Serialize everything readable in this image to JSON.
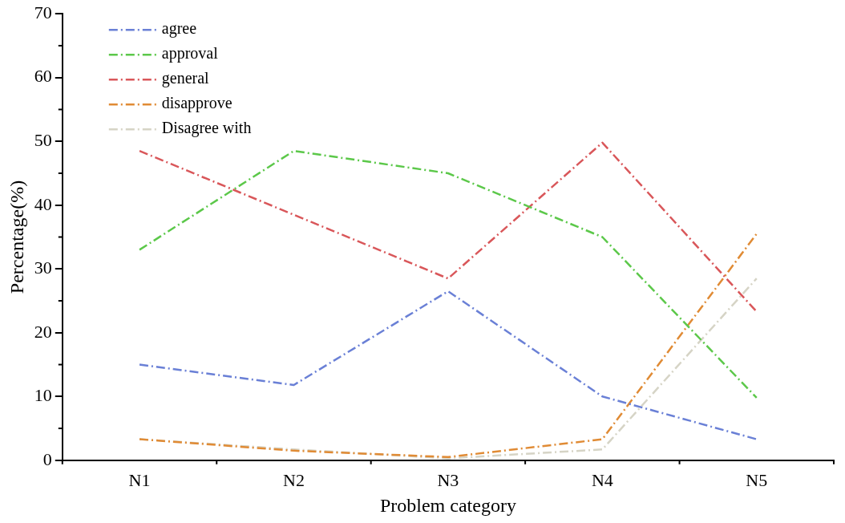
{
  "chart_data": {
    "type": "line",
    "xlabel": "Problem category",
    "ylabel": "Percentage(%)",
    "categories": [
      "N1",
      "N2",
      "N3",
      "N4",
      "N5"
    ],
    "series": [
      {
        "name": "agree",
        "color": "#6a80d6",
        "values": [
          15,
          11.8,
          26.5,
          10,
          3.3
        ]
      },
      {
        "name": "approval",
        "color": "#5cc84a",
        "values": [
          33,
          48.5,
          45,
          35,
          9.8
        ]
      },
      {
        "name": "general",
        "color": "#d9575a",
        "values": [
          48.5,
          38.5,
          28.5,
          49.8,
          23.3
        ]
      },
      {
        "name": "disapprove",
        "color": "#e08b35",
        "values": [
          3.3,
          1.5,
          0.5,
          3.3,
          35.5
        ]
      },
      {
        "name": "Disagree with",
        "color": "#d6d4c6",
        "values": [
          3.3,
          1.7,
          0.3,
          1.7,
          28.5
        ]
      }
    ],
    "ylim": [
      0,
      70
    ],
    "yticks": [
      0,
      10,
      20,
      30,
      40,
      50,
      60,
      70
    ],
    "grid": false,
    "legend": "top left",
    "marker": "none",
    "line_style": "dashed"
  }
}
